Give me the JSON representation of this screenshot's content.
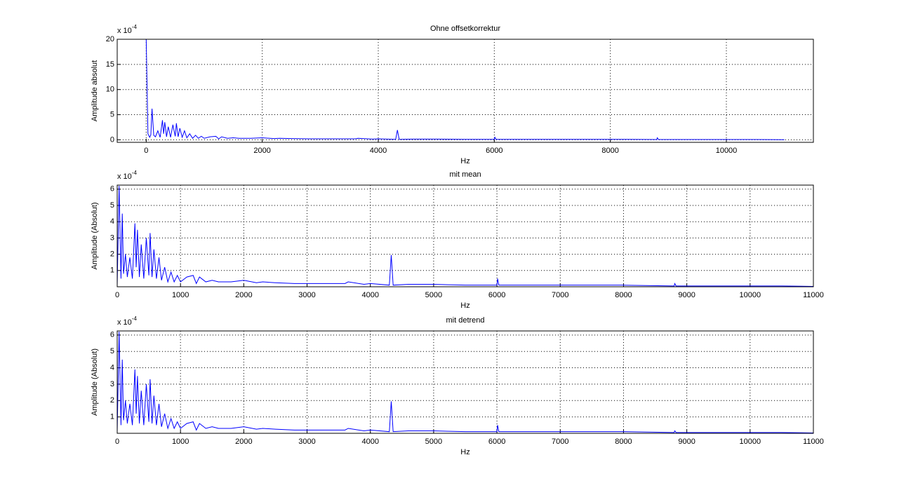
{
  "chart_data": [
    {
      "type": "line",
      "title": "Ohne offsetkorrektur",
      "xlabel": "Hz",
      "ylabel": "Amplitude absolut",
      "y_multiplier_base": "x 10",
      "y_multiplier_exponent": "-4",
      "x": [
        0,
        30,
        60,
        80,
        100,
        130,
        160,
        200,
        240,
        280,
        300,
        320,
        350,
        380,
        420,
        460,
        500,
        520,
        550,
        580,
        620,
        660,
        700,
        750,
        800,
        850,
        900,
        950,
        1000,
        1100,
        1200,
        1250,
        1300,
        1400,
        1500,
        1600,
        1800,
        2000,
        2200,
        2300,
        2500,
        2800,
        3000,
        3300,
        3600,
        3650,
        3900,
        4000,
        4300,
        4330,
        4360,
        4600,
        5000,
        5500,
        6000,
        6010,
        6030,
        6500,
        7000,
        7500,
        8000,
        8800,
        8810,
        8830,
        9500,
        10000,
        10500,
        11000
      ],
      "series": [
        {
          "color": "#0000ff",
          "values": [
            20,
            1.2,
            0.5,
            1.0,
            6.2,
            0.9,
            0.6,
            1.8,
            0.5,
            3.9,
            1.2,
            3.5,
            0.6,
            2.6,
            0.5,
            3.0,
            0.7,
            3.3,
            0.6,
            2.3,
            0.5,
            1.8,
            0.4,
            1.2,
            0.3,
            0.9,
            0.3,
            0.7,
            0.3,
            0.6,
            0.7,
            0.2,
            0.6,
            0.3,
            0.4,
            0.3,
            0.3,
            0.4,
            0.25,
            0.3,
            0.25,
            0.2,
            0.2,
            0.2,
            0.2,
            0.3,
            0.15,
            0.2,
            0.1,
            1.95,
            0.1,
            0.15,
            0.15,
            0.1,
            0.1,
            0.5,
            0.1,
            0.1,
            0.1,
            0.1,
            0.1,
            0.05,
            0.4,
            0.05,
            0.05,
            0.05,
            0.05,
            0.02
          ]
        }
      ],
      "xlim": [
        -500,
        11500
      ],
      "ylim": [
        -0.5,
        20
      ],
      "xticks": [
        0,
        2000,
        4000,
        6000,
        8000,
        10000
      ],
      "yticks": [
        0,
        5,
        10,
        15,
        20
      ],
      "grid": true
    },
    {
      "type": "line",
      "title": "mit mean",
      "xlabel": "Hz",
      "ylabel": "Amplitude (Absolut)",
      "y_multiplier_base": "x 10",
      "y_multiplier_exponent": "-4",
      "x": [
        0,
        30,
        60,
        80,
        100,
        130,
        160,
        200,
        240,
        280,
        300,
        320,
        350,
        380,
        420,
        460,
        500,
        520,
        550,
        580,
        620,
        660,
        700,
        750,
        800,
        850,
        900,
        950,
        1000,
        1100,
        1200,
        1250,
        1300,
        1400,
        1500,
        1600,
        1800,
        2000,
        2200,
        2300,
        2500,
        2800,
        3000,
        3300,
        3600,
        3650,
        3900,
        4000,
        4300,
        4330,
        4360,
        4600,
        5000,
        5500,
        6000,
        6010,
        6030,
        6500,
        7000,
        7500,
        8000,
        8800,
        8810,
        8830,
        9500,
        10000,
        10500,
        11000
      ],
      "series": [
        {
          "color": "#0000ff",
          "values": [
            0.1,
            6.2,
            0.5,
            4.5,
            0.8,
            2.0,
            0.6,
            1.8,
            0.5,
            3.9,
            1.2,
            3.5,
            0.6,
            2.6,
            0.5,
            3.0,
            0.7,
            3.3,
            0.6,
            2.3,
            0.5,
            1.8,
            0.4,
            1.2,
            0.3,
            0.9,
            0.3,
            0.7,
            0.3,
            0.6,
            0.7,
            0.2,
            0.6,
            0.3,
            0.4,
            0.3,
            0.3,
            0.4,
            0.25,
            0.3,
            0.25,
            0.2,
            0.2,
            0.2,
            0.2,
            0.3,
            0.15,
            0.2,
            0.1,
            1.95,
            0.1,
            0.15,
            0.15,
            0.1,
            0.1,
            0.5,
            0.1,
            0.1,
            0.1,
            0.1,
            0.1,
            0.05,
            0.2,
            0.05,
            0.05,
            0.05,
            0.05,
            0.02
          ]
        }
      ],
      "xlim": [
        0,
        11000
      ],
      "ylim": [
        0,
        6.25
      ],
      "xticks": [
        0,
        1000,
        2000,
        3000,
        4000,
        5000,
        6000,
        7000,
        8000,
        9000,
        10000,
        11000
      ],
      "yticks": [
        1,
        2,
        3,
        4,
        5,
        6
      ],
      "grid": true
    },
    {
      "type": "line",
      "title": "mit detrend",
      "xlabel": "Hz",
      "ylabel": "Amplitude (Absolut)",
      "y_multiplier_base": "x 10",
      "y_multiplier_exponent": "-4",
      "x": [
        0,
        30,
        60,
        80,
        100,
        130,
        160,
        200,
        240,
        280,
        300,
        320,
        350,
        380,
        420,
        460,
        500,
        520,
        550,
        580,
        620,
        660,
        700,
        750,
        800,
        850,
        900,
        950,
        1000,
        1100,
        1200,
        1250,
        1300,
        1400,
        1500,
        1600,
        1800,
        2000,
        2200,
        2300,
        2500,
        2800,
        3000,
        3300,
        3600,
        3650,
        3900,
        4000,
        4300,
        4330,
        4360,
        4600,
        5000,
        5500,
        6000,
        6010,
        6030,
        6500,
        7000,
        7500,
        8000,
        8800,
        8810,
        8830,
        9500,
        10000,
        10500,
        11000
      ],
      "series": [
        {
          "color": "#0000ff",
          "values": [
            0.1,
            6.2,
            0.5,
            4.5,
            0.8,
            2.0,
            0.6,
            1.8,
            0.5,
            3.9,
            1.2,
            3.5,
            0.6,
            2.6,
            0.5,
            3.0,
            0.7,
            3.3,
            0.6,
            2.3,
            0.5,
            1.8,
            0.4,
            1.2,
            0.3,
            0.9,
            0.3,
            0.7,
            0.3,
            0.6,
            0.7,
            0.2,
            0.6,
            0.3,
            0.4,
            0.3,
            0.3,
            0.4,
            0.25,
            0.3,
            0.25,
            0.2,
            0.2,
            0.2,
            0.2,
            0.3,
            0.15,
            0.2,
            0.1,
            1.95,
            0.1,
            0.15,
            0.15,
            0.1,
            0.1,
            0.5,
            0.1,
            0.1,
            0.1,
            0.1,
            0.1,
            0.05,
            0.15,
            0.05,
            0.05,
            0.05,
            0.05,
            0.02
          ]
        }
      ],
      "xlim": [
        0,
        11000
      ],
      "ylim": [
        0,
        6.25
      ],
      "xticks": [
        0,
        1000,
        2000,
        3000,
        4000,
        5000,
        6000,
        7000,
        8000,
        9000,
        10000,
        11000
      ],
      "yticks": [
        1,
        2,
        3,
        4,
        5,
        6
      ],
      "grid": true
    }
  ]
}
